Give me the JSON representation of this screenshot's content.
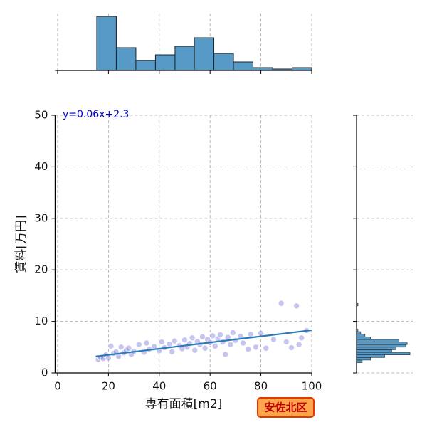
{
  "chart_data": {
    "type": "scatter",
    "xlabel": "専有面積[m2]",
    "ylabel": "賃料[万円]",
    "annotation": "y=0.06x+2.3",
    "badge": "安佐北区",
    "xlim": [
      -1,
      100
    ],
    "ylim": [
      0,
      50
    ],
    "xticks": [
      0,
      20,
      40,
      60,
      80,
      100
    ],
    "yticks": [
      0,
      10,
      20,
      30,
      40,
      50
    ],
    "grid": true,
    "color": "#5a5ad2",
    "line_color": "#2a7ab8",
    "x": [
      16,
      17,
      18,
      19,
      20,
      21,
      22,
      23,
      24,
      25,
      26,
      27,
      28,
      29,
      30,
      32,
      34,
      35,
      36,
      38,
      40,
      41,
      42,
      44,
      45,
      46,
      48,
      49,
      50,
      51,
      52,
      53,
      54,
      55,
      56,
      57,
      58,
      59,
      60,
      61,
      62,
      63,
      64,
      65,
      66,
      67,
      68,
      69,
      70,
      72,
      73,
      75,
      76,
      78,
      80,
      82,
      85,
      88,
      90,
      92,
      94,
      95,
      96,
      98
    ],
    "values": [
      2.6,
      3.0,
      2.8,
      3.5,
      2.9,
      5.2,
      3.8,
      4.1,
      3.2,
      5.0,
      3.9,
      4.4,
      4.8,
      3.6,
      4.2,
      5.5,
      4.0,
      5.8,
      4.6,
      5.1,
      4.3,
      6.0,
      4.9,
      5.6,
      4.1,
      6.2,
      5.3,
      4.7,
      6.4,
      5.0,
      5.7,
      6.8,
      4.4,
      6.1,
      5.5,
      7.0,
      4.8,
      6.5,
      5.9,
      7.2,
      5.2,
      6.6,
      7.4,
      6.0,
      3.6,
      6.9,
      5.5,
      7.8,
      6.3,
      7.1,
      5.8,
      4.6,
      7.5,
      5.0,
      7.7,
      4.8,
      6.5,
      13.5,
      6.0,
      4.9,
      13.0,
      5.5,
      6.8,
      8.2
    ],
    "regression": {
      "x": [
        15,
        100
      ],
      "values": [
        3.2,
        8.3
      ]
    },
    "hist_color": "#5799c7",
    "marginal_x": {
      "bins": [
        15.4,
        23.1,
        30.8,
        38.5,
        46.2,
        53.8,
        61.5,
        69.2,
        76.9,
        84.6,
        92.3,
        100
      ],
      "counts": [
        38,
        16,
        7,
        11,
        17,
        23,
        12,
        6,
        2,
        1,
        2
      ],
      "lim": [
        0,
        40
      ]
    },
    "marginal_y": {
      "bins": [
        2,
        2.5,
        3,
        3.5,
        4,
        4.5,
        5,
        5.5,
        6,
        6.5,
        7,
        7.5,
        8,
        8.5,
        13,
        13.5
      ],
      "counts": [
        4,
        10,
        20,
        38,
        25,
        28,
        35,
        36,
        30,
        10,
        6,
        3,
        1,
        0,
        1
      ],
      "lim": [
        0,
        40
      ]
    }
  }
}
